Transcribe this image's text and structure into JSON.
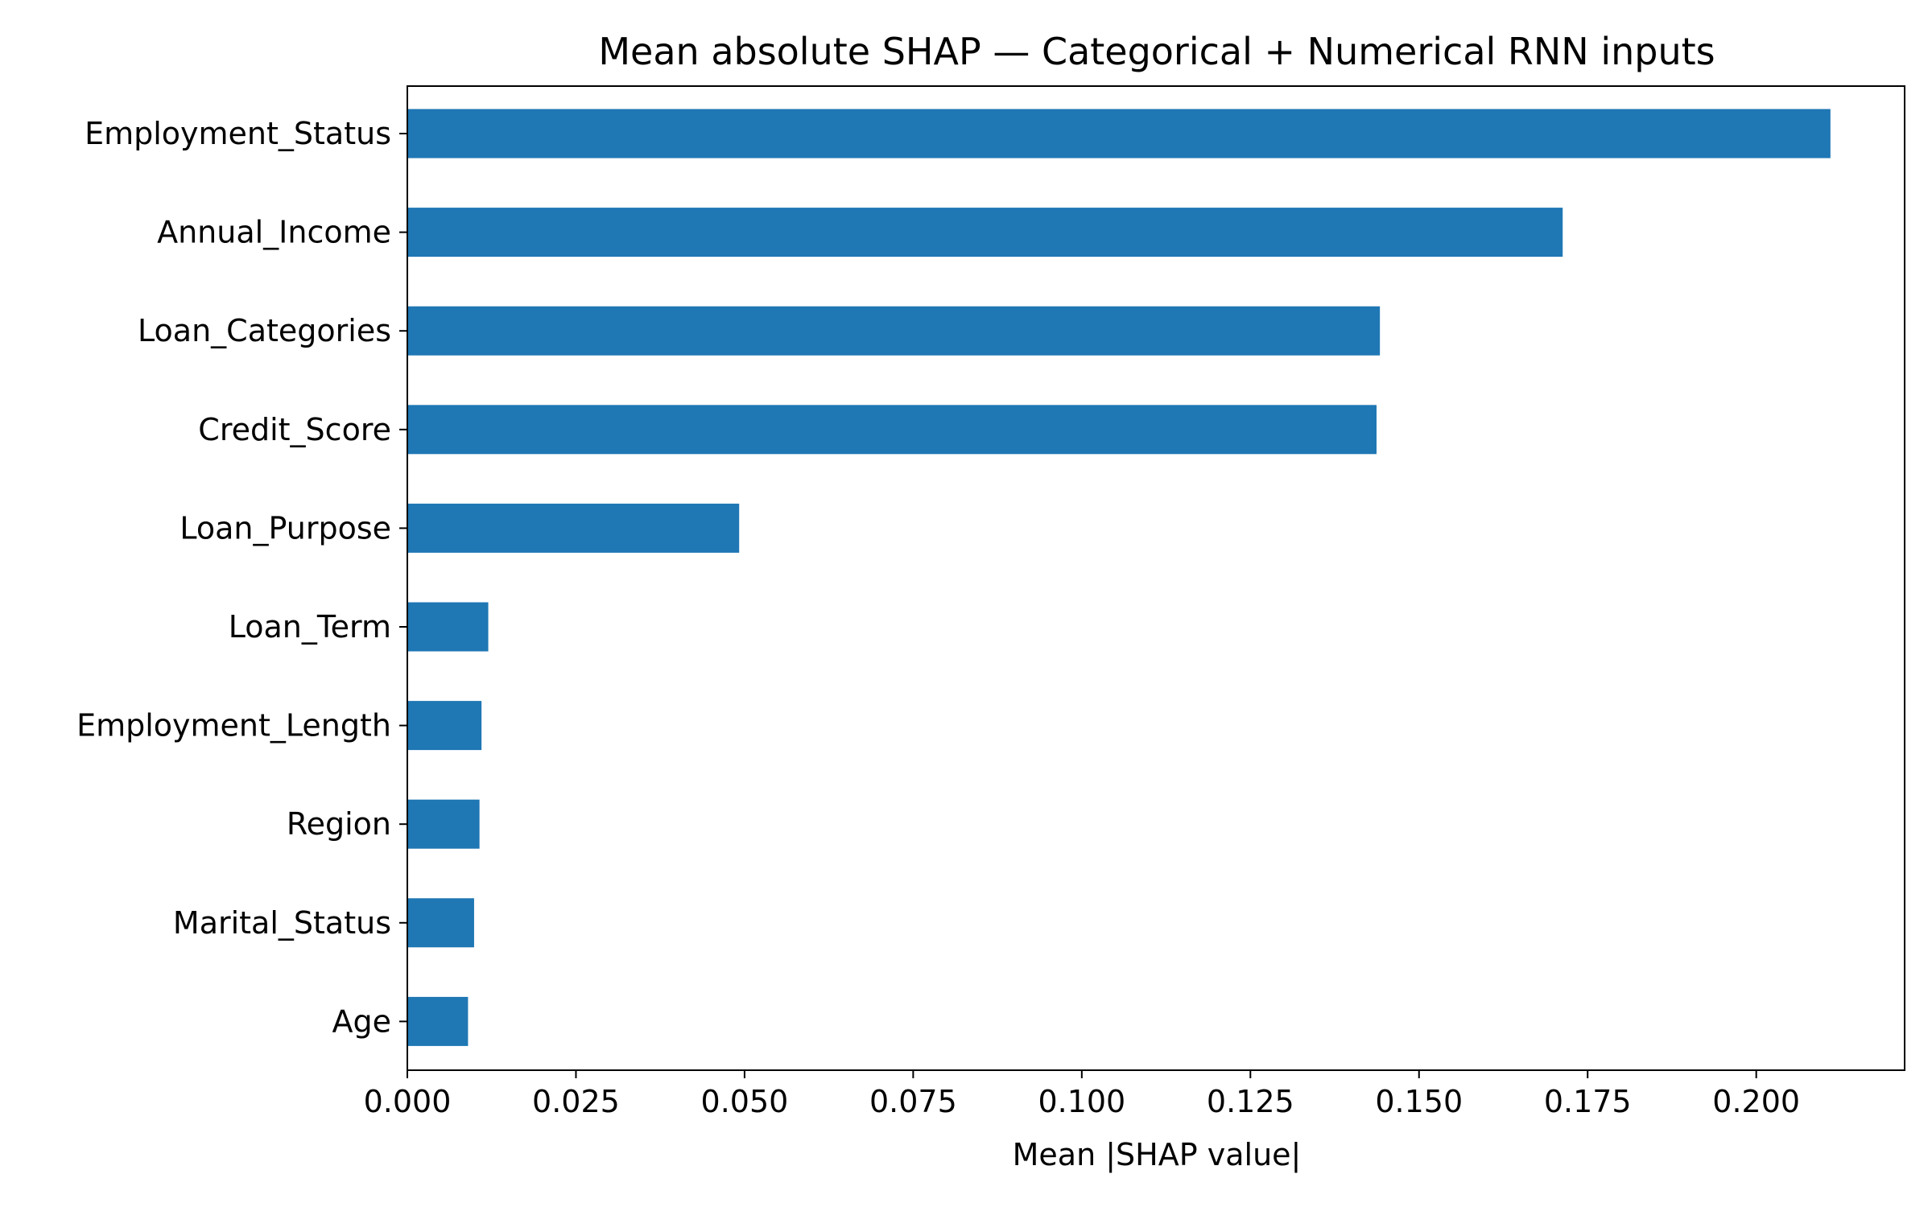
{
  "chart_data": {
    "type": "bar",
    "orientation": "horizontal",
    "title": "Mean absolute SHAP — Categorical + Numerical RNN inputs",
    "xlabel": "Mean |SHAP value|",
    "ylabel": "",
    "categories": [
      "Employment_Status",
      "Annual_Income",
      "Loan_Categories",
      "Credit_Score",
      "Loan_Purpose",
      "Loan_Term",
      "Employment_Length",
      "Region",
      "Marital_Status",
      "Age"
    ],
    "values": [
      0.211,
      0.1713,
      0.1442,
      0.1437,
      0.0492,
      0.012,
      0.011,
      0.0107,
      0.0099,
      0.009
    ],
    "xlim": [
      0.0,
      0.222
    ],
    "xticks": [
      "0.000",
      "0.025",
      "0.050",
      "0.075",
      "0.100",
      "0.125",
      "0.150",
      "0.175",
      "0.200"
    ],
    "grid": false,
    "legend": "none",
    "bar_color": "#1f77b4"
  }
}
